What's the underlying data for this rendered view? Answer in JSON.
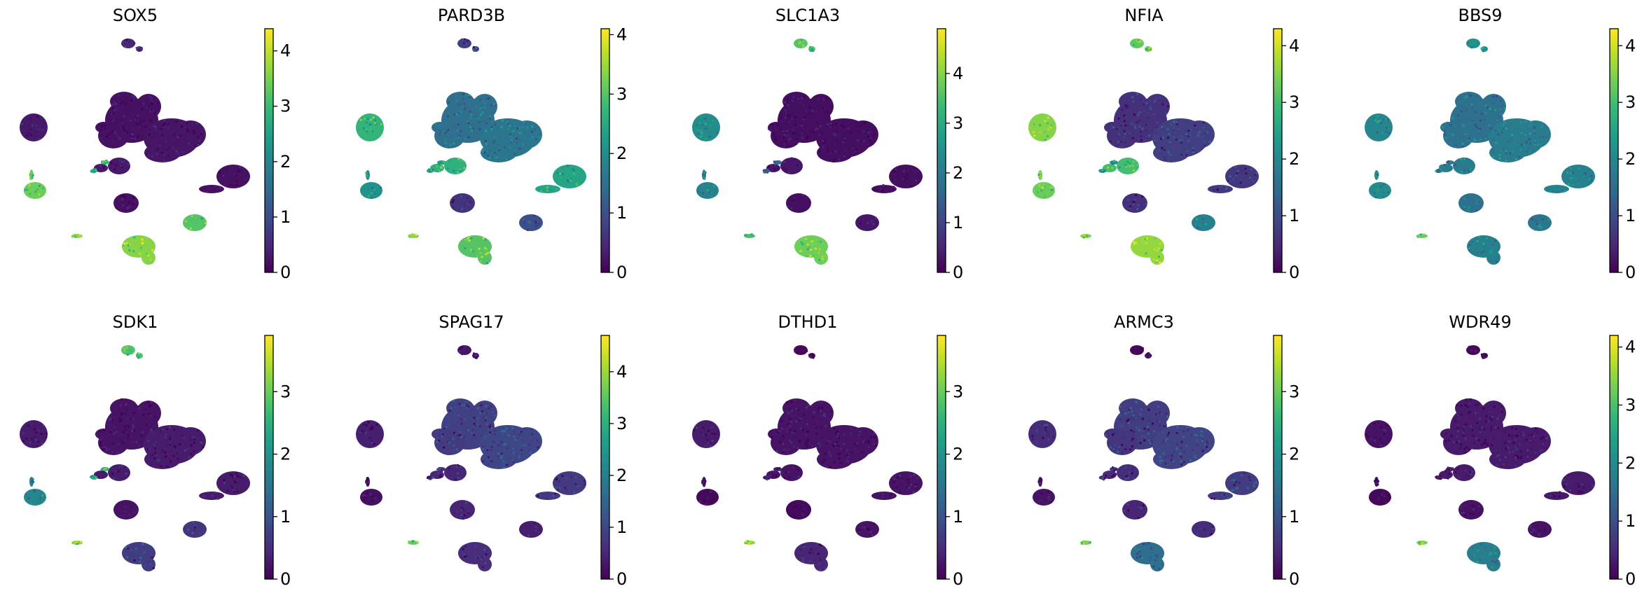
{
  "chart_data": {
    "type": "scatter",
    "description_kind": "embedding feature plots",
    "colormap": [
      "#440154",
      "#482878",
      "#3e4989",
      "#31688e",
      "#26828e",
      "#1f9e89",
      "#35b779",
      "#6ece58",
      "#b5de2b",
      "#fde725"
    ],
    "panels": [
      {
        "title": "SOX5",
        "vmin": 0,
        "vmax": 4.4,
        "ticks": [
          0,
          1,
          2,
          3,
          4
        ],
        "cluster_levels": {
          "top": 0.5,
          "main_top": 0.2,
          "main_left": 0.2,
          "main_right": 0.25,
          "left_upper": 0.3,
          "left_lower": 3.4,
          "small_center": 0.3,
          "right": 0.2,
          "bottom_center": 0.2,
          "bottom_right": 3.2,
          "bottom_cluster": 3.6,
          "thin": 3.7,
          "spokes": 2.8
        }
      },
      {
        "title": "PARD3B",
        "vmin": 0,
        "vmax": 4.1,
        "ticks": [
          0,
          1,
          2,
          3,
          4
        ],
        "cluster_levels": {
          "top": 0.8,
          "main_top": 1.5,
          "main_left": 1.5,
          "main_right": 1.6,
          "left_upper": 2.7,
          "left_lower": 2.1,
          "small_center": 2.6,
          "right": 2.4,
          "bottom_center": 0.6,
          "bottom_right": 1.0,
          "bottom_cluster": 3.0,
          "thin": 3.4,
          "spokes": 2.3
        }
      },
      {
        "title": "SLC1A3",
        "vmin": 0,
        "vmax": 4.9,
        "ticks": [
          0,
          1,
          2,
          3,
          4
        ],
        "cluster_levels": {
          "top": 3.6,
          "main_top": 0.2,
          "main_left": 0.2,
          "main_right": 0.2,
          "left_upper": 2.4,
          "left_lower": 2.2,
          "small_center": 0.3,
          "right": 0.2,
          "bottom_center": 0.2,
          "bottom_right": 0.3,
          "bottom_cluster": 3.8,
          "thin": 3.4,
          "spokes": 1.6
        }
      },
      {
        "title": "NFIA",
        "vmin": 0,
        "vmax": 4.3,
        "ticks": [
          0,
          1,
          2,
          3,
          4
        ],
        "cluster_levels": {
          "top": 3.2,
          "main_top": 0.6,
          "main_left": 0.6,
          "main_right": 0.8,
          "left_upper": 3.5,
          "left_lower": 3.3,
          "small_center": 3.0,
          "right": 0.7,
          "bottom_center": 0.6,
          "bottom_right": 1.9,
          "bottom_cluster": 3.6,
          "thin": 3.5,
          "spokes": 2.2
        }
      },
      {
        "title": "BBS9",
        "vmin": 0,
        "vmax": 4.3,
        "ticks": [
          0,
          1,
          2,
          3,
          4
        ],
        "cluster_levels": {
          "top": 2.2,
          "main_top": 1.6,
          "main_left": 1.6,
          "main_right": 1.8,
          "left_upper": 2.0,
          "left_lower": 2.1,
          "small_center": 1.8,
          "right": 1.9,
          "bottom_center": 1.6,
          "bottom_right": 1.7,
          "bottom_cluster": 1.9,
          "thin": 3.3,
          "spokes": 1.8
        }
      },
      {
        "title": "SDK1",
        "vmin": 0,
        "vmax": 3.9,
        "ticks": [
          0,
          1,
          2,
          3
        ],
        "cluster_levels": {
          "top": 2.8,
          "main_top": 0.2,
          "main_left": 0.2,
          "main_right": 0.3,
          "left_upper": 0.3,
          "left_lower": 1.8,
          "small_center": 0.3,
          "right": 0.3,
          "bottom_center": 0.2,
          "bottom_right": 0.6,
          "bottom_cluster": 0.7,
          "thin": 3.2,
          "spokes": 2.4
        }
      },
      {
        "title": "SPAG17",
        "vmin": 0,
        "vmax": 4.7,
        "ticks": [
          0,
          1,
          2,
          3,
          4
        ],
        "cluster_levels": {
          "top": 0.3,
          "main_top": 0.9,
          "main_left": 0.8,
          "main_right": 1.0,
          "left_upper": 0.4,
          "left_lower": 0.2,
          "small_center": 0.5,
          "right": 0.8,
          "bottom_center": 0.5,
          "bottom_right": 0.4,
          "bottom_cluster": 0.6,
          "thin": 3.6,
          "spokes": 0.6
        }
      },
      {
        "title": "DTHD1",
        "vmin": 0,
        "vmax": 3.9,
        "ticks": [
          0,
          1,
          2,
          3
        ],
        "cluster_levels": {
          "top": 0.1,
          "main_top": 0.2,
          "main_left": 0.2,
          "main_right": 0.2,
          "left_upper": 0.3,
          "left_lower": 0.1,
          "small_center": 0.2,
          "right": 0.2,
          "bottom_center": 0.1,
          "bottom_right": 0.2,
          "bottom_cluster": 0.4,
          "thin": 3.2,
          "spokes": 0.3
        }
      },
      {
        "title": "ARMC3",
        "vmin": 0,
        "vmax": 3.9,
        "ticks": [
          0,
          1,
          2,
          3
        ],
        "cluster_levels": {
          "top": 0.1,
          "main_top": 0.7,
          "main_left": 0.6,
          "main_right": 0.8,
          "left_upper": 0.5,
          "left_lower": 0.2,
          "small_center": 0.5,
          "right": 0.7,
          "bottom_center": 0.4,
          "bottom_right": 0.5,
          "bottom_cluster": 1.4,
          "thin": 3.1,
          "spokes": 0.6
        }
      },
      {
        "title": "WDR49",
        "vmin": 0,
        "vmax": 4.2,
        "ticks": [
          0,
          1,
          2,
          3,
          4
        ],
        "cluster_levels": {
          "top": 0.1,
          "main_top": 0.3,
          "main_left": 0.3,
          "main_right": 0.3,
          "left_upper": 0.2,
          "left_lower": 0.1,
          "small_center": 0.3,
          "right": 0.3,
          "bottom_center": 0.2,
          "bottom_right": 0.2,
          "bottom_cluster": 1.8,
          "thin": 3.4,
          "spokes": 0.3
        }
      }
    ]
  }
}
